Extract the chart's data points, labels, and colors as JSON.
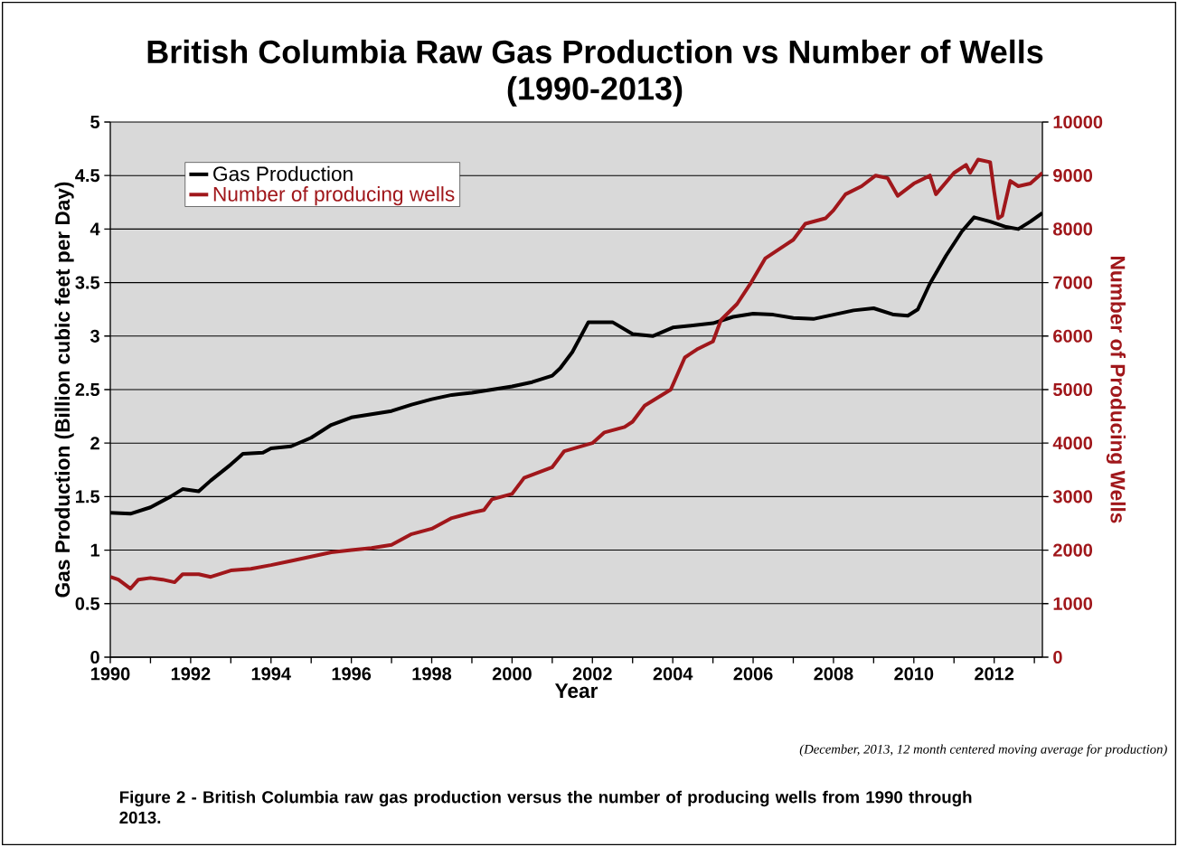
{
  "chart_data": {
    "type": "line",
    "title": "British Columbia Raw Gas Production vs Number of Wells",
    "subtitle": "(1990-2013)",
    "xlabel": "Year",
    "ylabel": "Gas Production (Billion cubic feet per Day)",
    "y2label": "Number of Producing Wells",
    "xlim": [
      1990,
      2013.2
    ],
    "xticks": [
      1990,
      {
        "value": 1991,
        "label": null
      },
      1992,
      {
        "value": 1993,
        "label": null
      },
      1994,
      {
        "value": 1995,
        "label": null
      },
      1996,
      {
        "value": 1997,
        "label": null
      },
      1998,
      {
        "value": 1999,
        "label": null
      },
      2000,
      {
        "value": 2001,
        "label": null
      },
      2002,
      {
        "value": 2003,
        "label": null
      },
      2004,
      {
        "value": 2005,
        "label": null
      },
      2006,
      {
        "value": 2007,
        "label": null
      },
      2008,
      {
        "value": 2009,
        "label": null
      },
      2010,
      {
        "value": 2011,
        "label": null
      },
      2012,
      {
        "value": 2013,
        "label": null
      }
    ],
    "ylim": [
      0,
      5
    ],
    "yticks": [
      0,
      0.5,
      1,
      1.5,
      2,
      2.5,
      3,
      3.5,
      4,
      4.5,
      5
    ],
    "y2lim": [
      0,
      10000
    ],
    "y2ticks": [
      0,
      1000,
      2000,
      3000,
      4000,
      5000,
      6000,
      7000,
      8000,
      9000,
      10000
    ],
    "grid": "y",
    "legend": "top left",
    "marker": "none",
    "line_style": "solid",
    "series": [
      {
        "name": "Gas Production",
        "color": "#000000",
        "x": [
          1990,
          1990.5,
          1991,
          1991.5,
          1991.8,
          1992.2,
          1992.5,
          1993,
          1993.3,
          1993.8,
          1994,
          1994.5,
          1995,
          1995.5,
          1996,
          1996.5,
          1997,
          1997.5,
          1998,
          1998.5,
          1999,
          1999.5,
          2000,
          2000.5,
          2001,
          2001.2,
          2001.5,
          2001.9,
          2002.5,
          2003,
          2003.5,
          2004,
          2004.5,
          2005,
          2005.5,
          2006,
          2006.5,
          2007,
          2007.5,
          2008,
          2008.5,
          2009,
          2009.5,
          2009.85,
          2010.1,
          2010.4,
          2010.8,
          2011.2,
          2011.5,
          2011.9,
          2012.3,
          2012.6,
          2012.9,
          2013.2
        ],
        "values": [
          1.35,
          1.34,
          1.4,
          1.5,
          1.57,
          1.55,
          1.65,
          1.8,
          1.9,
          1.91,
          1.95,
          1.97,
          2.05,
          2.17,
          2.24,
          2.27,
          2.3,
          2.36,
          2.41,
          2.45,
          2.47,
          2.5,
          2.53,
          2.57,
          2.63,
          2.7,
          2.85,
          3.13,
          3.13,
          3.02,
          3.0,
          3.08,
          3.1,
          3.12,
          3.18,
          3.21,
          3.2,
          3.17,
          3.16,
          3.2,
          3.24,
          3.26,
          3.2,
          3.19,
          3.25,
          3.49,
          3.75,
          3.98,
          4.11,
          4.07,
          4.02,
          4.0,
          4.07,
          4.15
        ]
      },
      {
        "name": "Number of producing wells",
        "color": "#a0171b",
        "axis": "y2",
        "x": [
          1990,
          1990.2,
          1990.5,
          1990.7,
          1991,
          1991.3,
          1991.6,
          1991.8,
          1992.2,
          1992.5,
          1993,
          1993.5,
          1994,
          1994.5,
          1995,
          1995.5,
          1996,
          1996.5,
          1997,
          1997.5,
          1998,
          1998.5,
          1999,
          1999.3,
          1999.5,
          2000,
          2000.3,
          2001,
          2001.3,
          2002,
          2002.3,
          2002.8,
          2003,
          2003.3,
          2003.95,
          2004.3,
          2004.6,
          2005,
          2005.2,
          2005.6,
          2005.95,
          2006.3,
          2006.8,
          2007,
          2007.3,
          2007.8,
          2008,
          2008.3,
          2008.7,
          2009.05,
          2009.35,
          2009.6,
          2010,
          2010.4,
          2010.55,
          2011,
          2011.3,
          2011.4,
          2011.6,
          2011.9,
          2012.0,
          2012.1,
          2012.2,
          2012.4,
          2012.6,
          2012.9,
          2013.2
        ],
        "values": [
          1500,
          1450,
          1280,
          1450,
          1480,
          1450,
          1400,
          1550,
          1550,
          1500,
          1620,
          1650,
          1720,
          1800,
          1880,
          1960,
          2000,
          2040,
          2100,
          2300,
          2400,
          2600,
          2700,
          2750,
          2950,
          3050,
          3350,
          3550,
          3850,
          4000,
          4200,
          4300,
          4400,
          4700,
          5000,
          5600,
          5750,
          5900,
          6300,
          6600,
          7000,
          7450,
          7700,
          7800,
          8100,
          8200,
          8350,
          8650,
          8800,
          9000,
          8950,
          8620,
          8850,
          9000,
          8650,
          9050,
          9200,
          9050,
          9300,
          9250,
          8700,
          8200,
          8250,
          8900,
          8800,
          8850,
          9050
        ]
      }
    ],
    "annotations": [
      "(December, 2013, 12 month centered moving average for production)",
      "Figure 2 - British Columbia raw gas production versus the number of producing wells from 1990 through 2013."
    ]
  }
}
